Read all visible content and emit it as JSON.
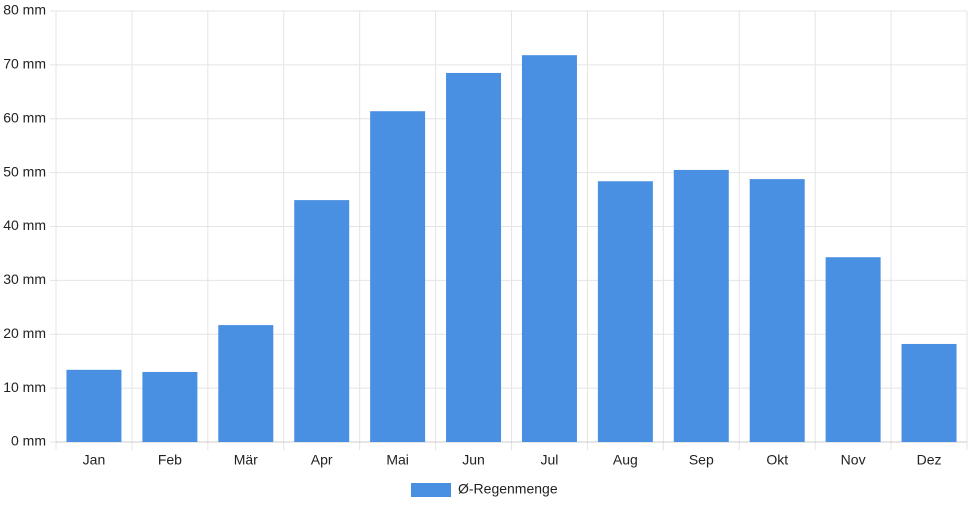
{
  "chart_data": {
    "type": "bar",
    "categories": [
      "Jan",
      "Feb",
      "Mär",
      "Apr",
      "Mai",
      "Jun",
      "Jul",
      "Aug",
      "Sep",
      "Okt",
      "Nov",
      "Dez"
    ],
    "series": [
      {
        "name": "Ø-Regenmenge",
        "color": "#4a90e2",
        "values": [
          13.4,
          13.0,
          21.7,
          44.9,
          61.4,
          68.5,
          71.8,
          48.4,
          50.5,
          48.8,
          34.3,
          18.2
        ]
      }
    ],
    "ylim": [
      0,
      80
    ],
    "yticks": [
      {
        "value": 0,
        "label": "0 mm"
      },
      {
        "value": 10,
        "label": "10 mm"
      },
      {
        "value": 20,
        "label": "20 mm"
      },
      {
        "value": 30,
        "label": "30 mm"
      },
      {
        "value": 40,
        "label": "40 mm"
      },
      {
        "value": 50,
        "label": "50 mm"
      },
      {
        "value": 60,
        "label": "60 mm"
      },
      {
        "value": 70,
        "label": "70 mm"
      },
      {
        "value": 80,
        "label": "80 mm"
      }
    ],
    "grid": true,
    "legend": "bottom"
  }
}
